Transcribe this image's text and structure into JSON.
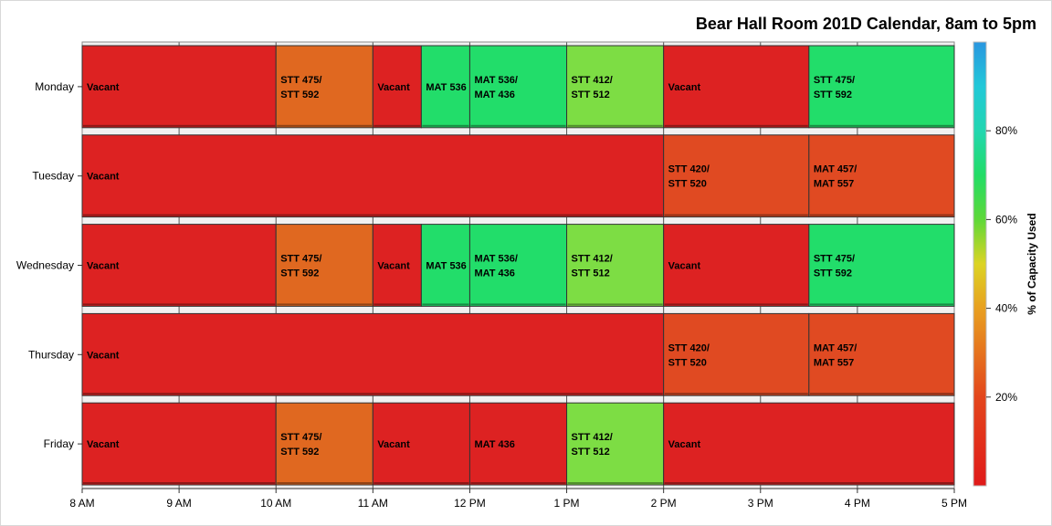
{
  "chart_data": {
    "type": "bar",
    "orientation": "horizontal-timeline",
    "title": "Bear Hall Room 201D Calendar, 8am to 5pm",
    "xlim": [
      8,
      17
    ],
    "x_ticks": [
      {
        "value": 8,
        "label": "8 AM"
      },
      {
        "value": 9,
        "label": "9 AM"
      },
      {
        "value": 10,
        "label": "10 AM"
      },
      {
        "value": 11,
        "label": "11 AM"
      },
      {
        "value": 12,
        "label": "12 PM"
      },
      {
        "value": 13,
        "label": "1 PM"
      },
      {
        "value": 14,
        "label": "2 PM"
      },
      {
        "value": 15,
        "label": "3 PM"
      },
      {
        "value": 16,
        "label": "4 PM"
      },
      {
        "value": 17,
        "label": "5 PM"
      }
    ],
    "categories": [
      "Monday",
      "Tuesday",
      "Wednesday",
      "Thursday",
      "Friday"
    ],
    "colorbar": {
      "label": "% of Capacity Used",
      "range": [
        0,
        100
      ],
      "ticks": [
        {
          "value": 20,
          "label": "20%"
        },
        {
          "value": 40,
          "label": "40%"
        },
        {
          "value": 60,
          "label": "60%"
        },
        {
          "value": 80,
          "label": "80%"
        }
      ]
    },
    "rows": [
      {
        "day": "Monday",
        "blocks": [
          {
            "start": 8,
            "end": 10,
            "lines": [
              "Vacant"
            ],
            "color": "#dd2222"
          },
          {
            "start": 10,
            "end": 11,
            "lines": [
              "STT 475/",
              "STT 592"
            ],
            "color": "#e06820"
          },
          {
            "start": 11,
            "end": 11.5,
            "lines": [
              "Vacant"
            ],
            "color": "#dd2222"
          },
          {
            "start": 11.5,
            "end": 12,
            "lines": [
              "MAT 536"
            ],
            "color": "#22dd6a"
          },
          {
            "start": 12,
            "end": 13,
            "lines": [
              "MAT 536/",
              "MAT 436"
            ],
            "color": "#22dd6a"
          },
          {
            "start": 13,
            "end": 14,
            "lines": [
              "STT 412/",
              "STT 512"
            ],
            "color": "#7ddd44"
          },
          {
            "start": 14,
            "end": 15.5,
            "lines": [
              "Vacant"
            ],
            "color": "#dd2222"
          },
          {
            "start": 15.5,
            "end": 17,
            "lines": [
              "STT 475/",
              "STT 592"
            ],
            "color": "#22dd6a"
          }
        ]
      },
      {
        "day": "Tuesday",
        "blocks": [
          {
            "start": 8,
            "end": 14,
            "lines": [
              "Vacant"
            ],
            "color": "#dd2222"
          },
          {
            "start": 14,
            "end": 15.5,
            "lines": [
              "STT 420/",
              "STT 520"
            ],
            "color": "#e04a22"
          },
          {
            "start": 15.5,
            "end": 17,
            "lines": [
              "MAT 457/",
              "MAT 557"
            ],
            "color": "#e04a22"
          }
        ]
      },
      {
        "day": "Wednesday",
        "blocks": [
          {
            "start": 8,
            "end": 10,
            "lines": [
              "Vacant"
            ],
            "color": "#dd2222"
          },
          {
            "start": 10,
            "end": 11,
            "lines": [
              "STT 475/",
              "STT 592"
            ],
            "color": "#e06820"
          },
          {
            "start": 11,
            "end": 11.5,
            "lines": [
              "Vacant"
            ],
            "color": "#dd2222"
          },
          {
            "start": 11.5,
            "end": 12,
            "lines": [
              "MAT 536"
            ],
            "color": "#22dd6a"
          },
          {
            "start": 12,
            "end": 13,
            "lines": [
              "MAT 536/",
              "MAT 436"
            ],
            "color": "#22dd6a"
          },
          {
            "start": 13,
            "end": 14,
            "lines": [
              "STT 412/",
              "STT 512"
            ],
            "color": "#7ddd44"
          },
          {
            "start": 14,
            "end": 15.5,
            "lines": [
              "Vacant"
            ],
            "color": "#dd2222"
          },
          {
            "start": 15.5,
            "end": 17,
            "lines": [
              "STT 475/",
              "STT 592"
            ],
            "color": "#22dd6a"
          }
        ]
      },
      {
        "day": "Thursday",
        "blocks": [
          {
            "start": 8,
            "end": 14,
            "lines": [
              "Vacant"
            ],
            "color": "#dd2222"
          },
          {
            "start": 14,
            "end": 15.5,
            "lines": [
              "STT 420/",
              "STT 520"
            ],
            "color": "#e04a22"
          },
          {
            "start": 15.5,
            "end": 17,
            "lines": [
              "MAT 457/",
              "MAT 557"
            ],
            "color": "#e04a22"
          }
        ]
      },
      {
        "day": "Friday",
        "blocks": [
          {
            "start": 8,
            "end": 10,
            "lines": [
              "Vacant"
            ],
            "color": "#dd2222"
          },
          {
            "start": 10,
            "end": 11,
            "lines": [
              "STT 475/",
              "STT 592"
            ],
            "color": "#e06820"
          },
          {
            "start": 11,
            "end": 12,
            "lines": [
              "Vacant"
            ],
            "color": "#dd2222"
          },
          {
            "start": 12,
            "end": 13,
            "lines": [
              "MAT 436"
            ],
            "color": "#dd2222"
          },
          {
            "start": 13,
            "end": 14,
            "lines": [
              "STT 412/",
              "STT 512"
            ],
            "color": "#7ddd44"
          },
          {
            "start": 14,
            "end": 17,
            "lines": [
              "Vacant"
            ],
            "color": "#dd2222"
          }
        ]
      }
    ]
  }
}
